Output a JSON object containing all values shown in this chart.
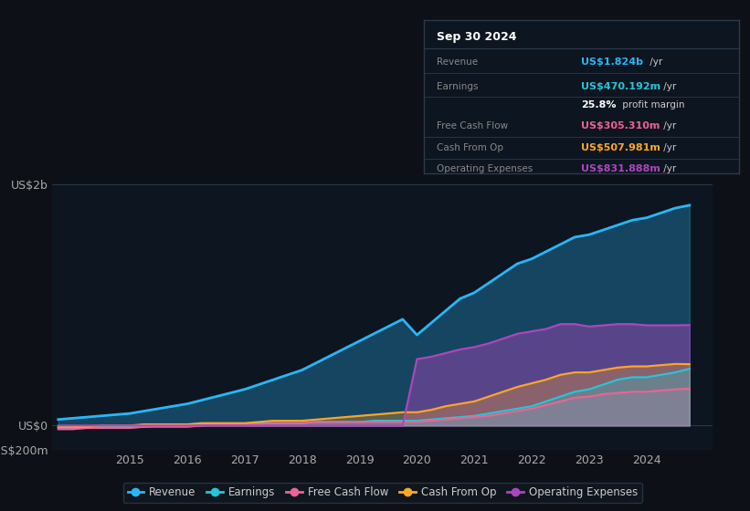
{
  "background_color": "#0d1117",
  "plot_bg_color": "#0d1520",
  "grid_color": "#2a3a4a",
  "years": [
    2013.75,
    2014.0,
    2014.25,
    2014.5,
    2014.75,
    2015.0,
    2015.25,
    2015.5,
    2015.75,
    2016.0,
    2016.25,
    2016.5,
    2016.75,
    2017.0,
    2017.25,
    2017.5,
    2017.75,
    2018.0,
    2018.25,
    2018.5,
    2018.75,
    2019.0,
    2019.25,
    2019.5,
    2019.75,
    2020.0,
    2020.25,
    2020.5,
    2020.75,
    2021.0,
    2021.25,
    2021.5,
    2021.75,
    2022.0,
    2022.25,
    2022.5,
    2022.75,
    2023.0,
    2023.25,
    2023.5,
    2023.75,
    2024.0,
    2024.25,
    2024.5,
    2024.75
  ],
  "revenue": [
    0.05,
    0.06,
    0.07,
    0.08,
    0.09,
    0.1,
    0.12,
    0.14,
    0.16,
    0.18,
    0.21,
    0.24,
    0.27,
    0.3,
    0.34,
    0.38,
    0.42,
    0.46,
    0.52,
    0.58,
    0.64,
    0.7,
    0.76,
    0.82,
    0.88,
    0.75,
    0.85,
    0.95,
    1.05,
    1.1,
    1.18,
    1.26,
    1.34,
    1.38,
    1.44,
    1.5,
    1.56,
    1.58,
    1.62,
    1.66,
    1.7,
    1.72,
    1.76,
    1.8,
    1.824
  ],
  "earnings": [
    -0.02,
    -0.02,
    -0.02,
    -0.01,
    -0.01,
    -0.01,
    -0.01,
    0.0,
    0.0,
    0.0,
    0.01,
    0.01,
    0.01,
    0.01,
    0.02,
    0.02,
    0.02,
    0.02,
    0.03,
    0.03,
    0.03,
    0.03,
    0.04,
    0.04,
    0.04,
    0.04,
    0.05,
    0.06,
    0.07,
    0.08,
    0.1,
    0.12,
    0.14,
    0.16,
    0.2,
    0.24,
    0.28,
    0.3,
    0.34,
    0.38,
    0.4,
    0.4,
    0.42,
    0.44,
    0.47
  ],
  "free_cash_flow": [
    -0.03,
    -0.03,
    -0.02,
    -0.02,
    -0.02,
    -0.02,
    -0.01,
    -0.01,
    -0.01,
    -0.01,
    0.0,
    0.01,
    0.01,
    0.01,
    0.01,
    0.02,
    0.02,
    0.02,
    0.03,
    0.03,
    0.03,
    0.03,
    0.03,
    0.03,
    0.03,
    0.03,
    0.04,
    0.05,
    0.06,
    0.07,
    0.08,
    0.1,
    0.12,
    0.14,
    0.17,
    0.2,
    0.23,
    0.24,
    0.26,
    0.27,
    0.28,
    0.28,
    0.29,
    0.3,
    0.305
  ],
  "cash_from_op": [
    -0.01,
    -0.01,
    -0.01,
    0.0,
    0.0,
    0.0,
    0.01,
    0.01,
    0.01,
    0.01,
    0.02,
    0.02,
    0.02,
    0.02,
    0.03,
    0.04,
    0.04,
    0.04,
    0.05,
    0.06,
    0.07,
    0.08,
    0.09,
    0.1,
    0.11,
    0.11,
    0.13,
    0.16,
    0.18,
    0.2,
    0.24,
    0.28,
    0.32,
    0.35,
    0.38,
    0.42,
    0.44,
    0.44,
    0.46,
    0.48,
    0.49,
    0.49,
    0.5,
    0.51,
    0.508
  ],
  "operating_expenses": [
    0.0,
    0.0,
    0.0,
    0.0,
    0.0,
    0.0,
    0.0,
    0.0,
    0.0,
    0.0,
    0.0,
    0.0,
    0.0,
    0.0,
    0.0,
    0.0,
    0.0,
    0.0,
    0.0,
    0.0,
    0.0,
    0.0,
    0.0,
    0.0,
    0.0,
    0.55,
    0.57,
    0.6,
    0.63,
    0.65,
    0.68,
    0.72,
    0.76,
    0.78,
    0.8,
    0.84,
    0.84,
    0.82,
    0.83,
    0.84,
    0.84,
    0.83,
    0.83,
    0.83,
    0.832
  ],
  "revenue_color": "#29b6f6",
  "earnings_color": "#26c6da",
  "free_cash_flow_color": "#f06292",
  "cash_from_op_color": "#ffa726",
  "operating_expenses_color": "#ab47bc",
  "ylim": [
    -0.2,
    2.0
  ],
  "ytick_labels": [
    "US$0",
    "US$2b",
    "-US$200m"
  ],
  "ytick_positions": [
    0.0,
    2.0,
    -0.2
  ],
  "xlabel_years": [
    2015,
    2016,
    2017,
    2018,
    2019,
    2020,
    2021,
    2022,
    2023,
    2024
  ],
  "info_box": {
    "date": "Sep 30 2024",
    "revenue_val": "US$1.824b",
    "earnings_val": "US$470.192m",
    "profit_margin": "25.8%",
    "fcf_val": "US$305.310m",
    "cashop_val": "US$507.981m",
    "opex_val": "US$831.888m"
  },
  "legend_items": [
    "Revenue",
    "Earnings",
    "Free Cash Flow",
    "Cash From Op",
    "Operating Expenses"
  ],
  "legend_colors": [
    "#29b6f6",
    "#26c6da",
    "#f06292",
    "#ffa726",
    "#ab47bc"
  ]
}
